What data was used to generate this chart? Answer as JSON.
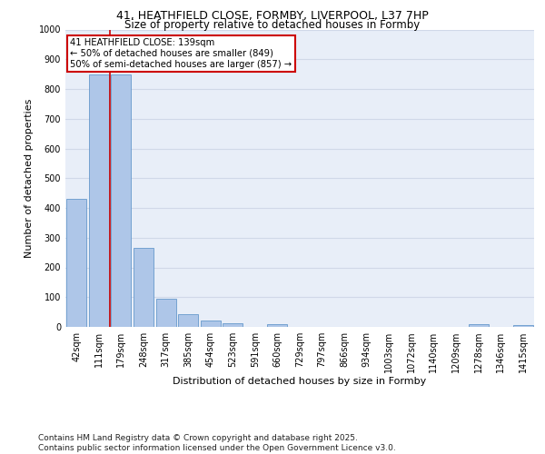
{
  "title_line1": "41, HEATHFIELD CLOSE, FORMBY, LIVERPOOL, L37 7HP",
  "title_line2": "Size of property relative to detached houses in Formby",
  "xlabel": "Distribution of detached houses by size in Formby",
  "ylabel": "Number of detached properties",
  "categories": [
    "42sqm",
    "111sqm",
    "179sqm",
    "248sqm",
    "317sqm",
    "385sqm",
    "454sqm",
    "523sqm",
    "591sqm",
    "660sqm",
    "729sqm",
    "797sqm",
    "866sqm",
    "934sqm",
    "1003sqm",
    "1072sqm",
    "1140sqm",
    "1209sqm",
    "1278sqm",
    "1346sqm",
    "1415sqm"
  ],
  "values": [
    430,
    849,
    849,
    265,
    95,
    43,
    20,
    13,
    0,
    8,
    0,
    0,
    0,
    0,
    0,
    0,
    0,
    0,
    8,
    0,
    7
  ],
  "bar_color": "#aec6e8",
  "bar_edge_color": "#6699cc",
  "vline_color": "#cc0000",
  "vline_x": 1.5,
  "ylim": [
    0,
    1000
  ],
  "yticks": [
    0,
    100,
    200,
    300,
    400,
    500,
    600,
    700,
    800,
    900,
    1000
  ],
  "annotation_text": "41 HEATHFIELD CLOSE: 139sqm\n← 50% of detached houses are smaller (849)\n50% of semi-detached houses are larger (857) →",
  "annotation_box_color": "#ffffff",
  "annotation_box_edge": "#cc0000",
  "footer": "Contains HM Land Registry data © Crown copyright and database right 2025.\nContains public sector information licensed under the Open Government Licence v3.0.",
  "bg_color": "#e8eef8",
  "grid_color": "#d0d8e8",
  "title1_fontsize": 9,
  "title2_fontsize": 8.5,
  "ylabel_fontsize": 8,
  "xlabel_fontsize": 8,
  "tick_fontsize": 7,
  "footer_fontsize": 6.5
}
